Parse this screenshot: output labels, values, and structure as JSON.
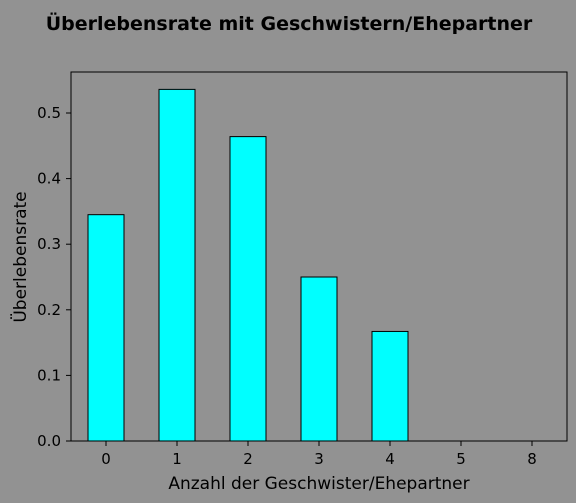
{
  "chart_data": {
    "type": "bar",
    "title": "Überlebensrate mit Geschwistern/Ehepartner",
    "xlabel": "Anzahl der Geschwister/Ehepartner",
    "ylabel": "Überlebensrate",
    "categories": [
      "0",
      "1",
      "2",
      "3",
      "4",
      "5",
      "8"
    ],
    "values": [
      0.345,
      0.536,
      0.464,
      0.25,
      0.167,
      0.0,
      0.0
    ],
    "ylim": [
      0,
      0.5625
    ],
    "yticks": [
      "0.0",
      "0.1",
      "0.2",
      "0.3",
      "0.4",
      "0.5"
    ],
    "grid": false,
    "colors": {
      "background": "#929292",
      "bar_fill": "#00ffff",
      "bar_edge": "#000000",
      "axes_edge": "#000000"
    }
  }
}
